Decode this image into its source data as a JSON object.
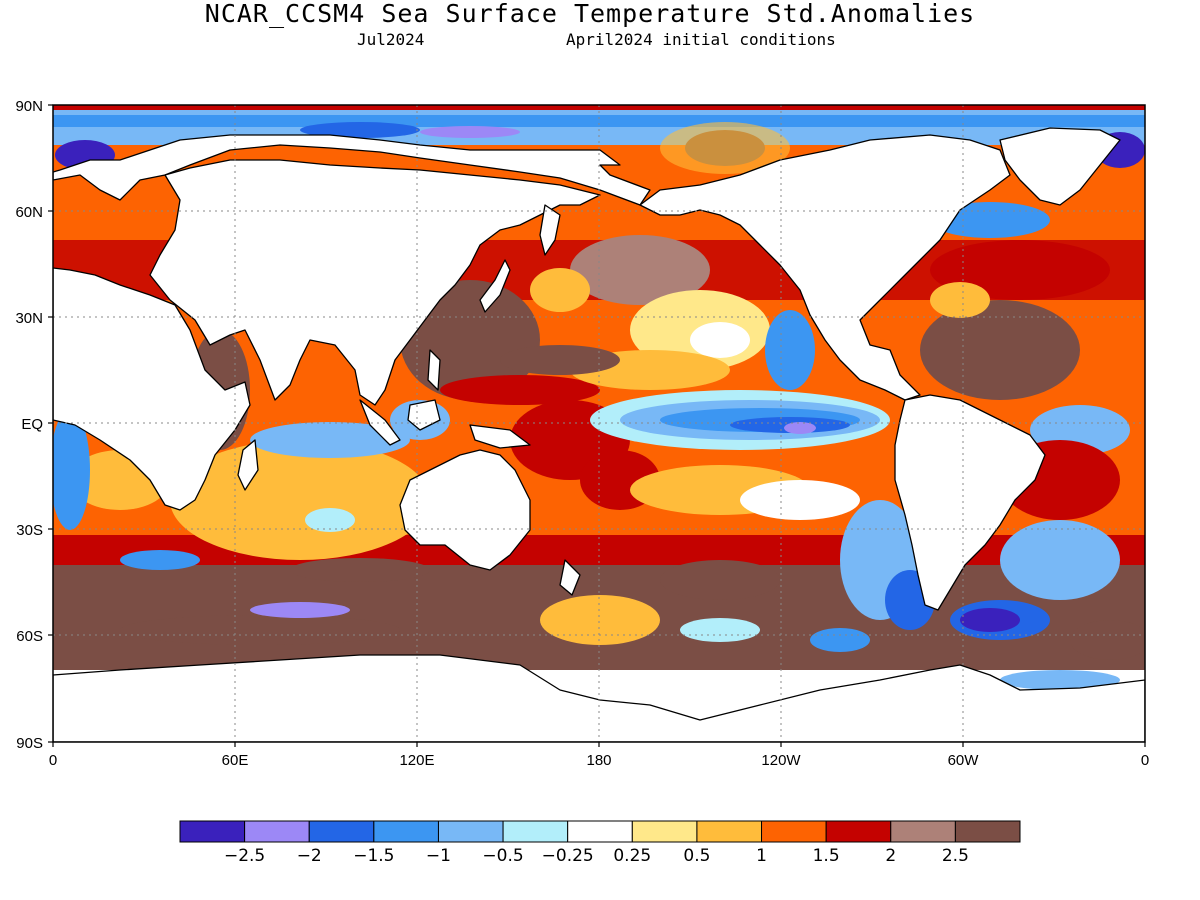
{
  "title": "NCAR_CCSM4 Sea Surface Temperature Std.Anomalies",
  "subtitle_left": "Jul2024",
  "subtitle_right": "April2024 initial conditions",
  "lat_labels": [
    "90N",
    "60N",
    "30N",
    "EQ",
    "30S",
    "60S",
    "90S"
  ],
  "lon_labels": [
    "0",
    "60E",
    "120E",
    "180",
    "120W",
    "60W",
    "0"
  ],
  "colorbar": {
    "labels": [
      "−2.5",
      "−2",
      "−1.5",
      "−1",
      "−0.5",
      "−0.25",
      "0.25",
      "0.5",
      "1",
      "1.5",
      "2",
      "2.5"
    ],
    "colors": [
      "#3a21bc",
      "#9c88f6",
      "#2366e6",
      "#3c96f2",
      "#78b8f6",
      "#b2eefa",
      "#ffffff",
      "#ffe88a",
      "#ffbc3b",
      "#fd6302",
      "#c40200",
      "#ad8178",
      "#7b4e45"
    ]
  },
  "land_color": "#ffffff"
}
